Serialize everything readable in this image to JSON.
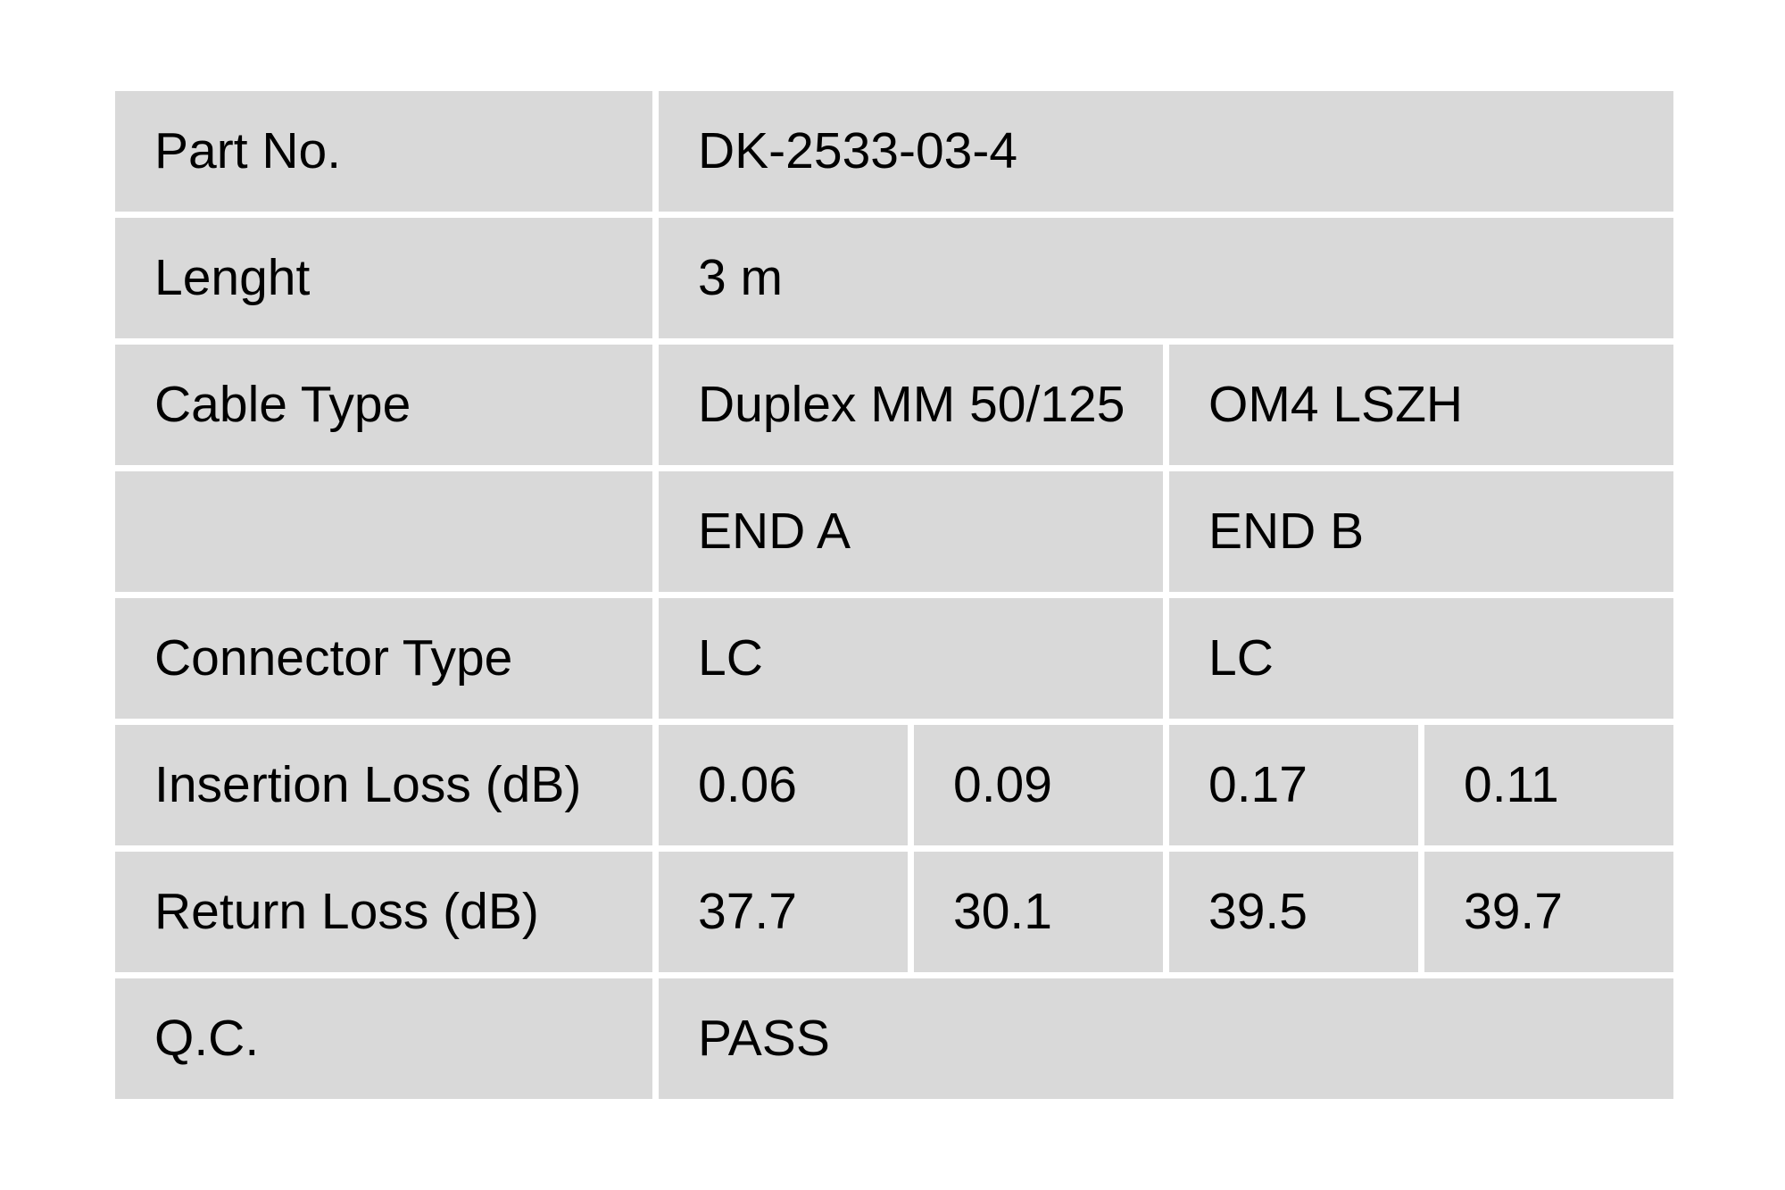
{
  "page": {
    "background_color": "#ffffff"
  },
  "table": {
    "cell_fill_color": "#d9d9d9",
    "text_color": "#000000",
    "rows": [
      {
        "id": "part-no",
        "label": "Part No.",
        "values": [
          {
            "text": "DK-2533-03-4",
            "span": 4
          }
        ]
      },
      {
        "id": "length",
        "label": "Lenght",
        "values": [
          {
            "text": "3 m",
            "span": 4
          }
        ]
      },
      {
        "id": "cable-type",
        "label": "Cable Type",
        "values": [
          {
            "text": "Duplex MM 50/125",
            "span": 2
          },
          {
            "text": "OM4 LSZH",
            "span": 2
          }
        ]
      },
      {
        "id": "end-header",
        "label": "",
        "values": [
          {
            "text": "END A",
            "span": 2
          },
          {
            "text": "END B",
            "span": 2
          }
        ]
      },
      {
        "id": "connector-type",
        "label": "Connector Type",
        "values": [
          {
            "text": "LC",
            "span": 2
          },
          {
            "text": "LC",
            "span": 2
          }
        ]
      },
      {
        "id": "insertion-loss",
        "label": "Insertion Loss (dB)",
        "values": [
          {
            "text": "0.06",
            "span": 1
          },
          {
            "text": "0.09",
            "span": 1
          },
          {
            "text": "0.17",
            "span": 1
          },
          {
            "text": "0.11",
            "span": 1
          }
        ]
      },
      {
        "id": "return-loss",
        "label": "Return Loss (dB)",
        "values": [
          {
            "text": "37.7",
            "span": 1
          },
          {
            "text": "30.1",
            "span": 1
          },
          {
            "text": "39.5",
            "span": 1
          },
          {
            "text": "39.7",
            "span": 1
          }
        ]
      },
      {
        "id": "qc",
        "label": "Q.C.",
        "values": [
          {
            "text": "PASS",
            "span": 4
          }
        ]
      }
    ]
  }
}
